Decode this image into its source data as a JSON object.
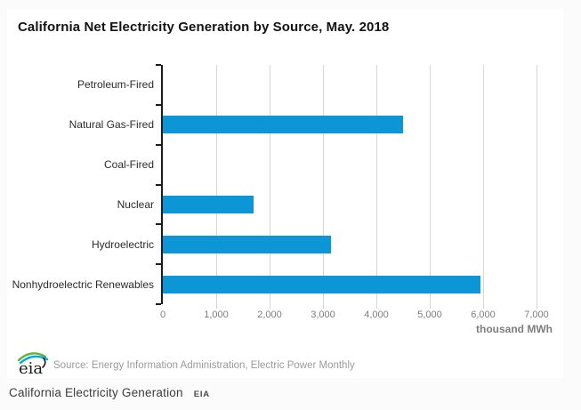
{
  "chart_data": {
    "type": "bar",
    "orientation": "horizontal",
    "title": "California Net Electricity Generation by Source, May. 2018",
    "categories": [
      "Petroleum-Fired",
      "Natural Gas-Fired",
      "Coal-Fired",
      "Nuclear",
      "Hydroelectric",
      "Nonhydroelectric Renewables"
    ],
    "values": [
      0,
      4500,
      0,
      1700,
      3150,
      5950
    ],
    "units": "thousand MWh",
    "xlabel": "thousand MWh",
    "xlim": [
      0,
      7500
    ],
    "xticks": [
      0,
      1000,
      2000,
      3000,
      4000,
      5000,
      6000,
      7000
    ],
    "xtick_labels": [
      "0",
      "1,000",
      "2,000",
      "3,000",
      "4,000",
      "5,000",
      "6,000",
      "7,000"
    ],
    "bar_color": "#0d96d5",
    "grid": "vertical",
    "legend": "none"
  },
  "footer": {
    "logo_text": "eia",
    "source": "Source: Energy Information Administration, Electric Power Monthly"
  },
  "caption": {
    "title": "California Electricity Generation",
    "tag": "EIA"
  }
}
